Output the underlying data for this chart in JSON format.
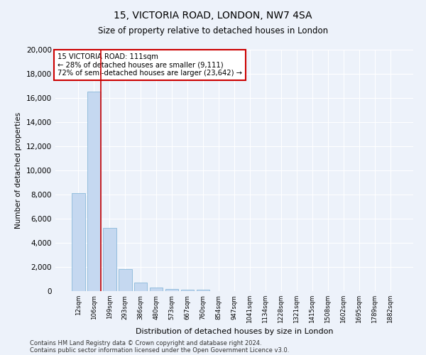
{
  "title1": "15, VICTORIA ROAD, LONDON, NW7 4SA",
  "title2": "Size of property relative to detached houses in London",
  "xlabel": "Distribution of detached houses by size in London",
  "ylabel": "Number of detached properties",
  "annotation_title": "15 VICTORIA ROAD: 111sqm",
  "annotation_line1": "← 28% of detached houses are smaller (9,111)",
  "annotation_line2": "72% of semi-detached houses are larger (23,642) →",
  "footer1": "Contains HM Land Registry data © Crown copyright and database right 2024.",
  "footer2": "Contains public sector information licensed under the Open Government Licence v3.0.",
  "bar_color": "#c5d8f0",
  "bar_edge_color": "#7aafd4",
  "vline_color": "#cc0000",
  "annotation_box_color": "#cc0000",
  "background_color": "#edf2fa",
  "grid_color": "#ffffff",
  "categories": [
    "12sqm",
    "106sqm",
    "199sqm",
    "293sqm",
    "386sqm",
    "480sqm",
    "573sqm",
    "667sqm",
    "760sqm",
    "854sqm",
    "947sqm",
    "1041sqm",
    "1134sqm",
    "1228sqm",
    "1321sqm",
    "1415sqm",
    "1508sqm",
    "1602sqm",
    "1695sqm",
    "1789sqm",
    "1882sqm"
  ],
  "values": [
    8100,
    16500,
    5250,
    1800,
    700,
    300,
    175,
    130,
    100,
    0,
    0,
    0,
    0,
    0,
    0,
    0,
    0,
    0,
    0,
    0,
    0
  ],
  "ylim": [
    0,
    20000
  ],
  "yticks": [
    0,
    2000,
    4000,
    6000,
    8000,
    10000,
    12000,
    14000,
    16000,
    18000,
    20000
  ]
}
